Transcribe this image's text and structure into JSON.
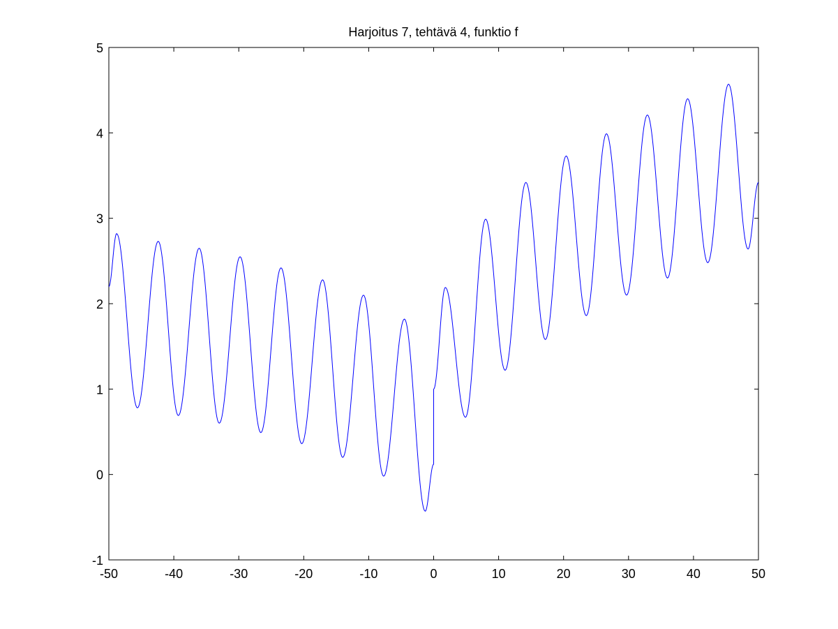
{
  "chart_data": {
    "type": "line",
    "title": "Harjoitus 7, tehtävä 4, funktio f",
    "xlabel": "",
    "ylabel": "",
    "xlim": [
      -50,
      50
    ],
    "ylim": [
      -1,
      5
    ],
    "xticks": [
      -50,
      -40,
      -30,
      -20,
      -10,
      0,
      10,
      20,
      30,
      40,
      50
    ],
    "yticks": [
      -1,
      0,
      1,
      2,
      3,
      4,
      5
    ],
    "xtick_labels": [
      "-50",
      "-40",
      "-30",
      "-20",
      "-10",
      "0",
      "10",
      "20",
      "30",
      "40",
      "50"
    ],
    "ytick_labels": [
      "-1",
      "0",
      "1",
      "2",
      "3",
      "4",
      "5"
    ],
    "grid": false,
    "series": [
      {
        "color": "#0000ff",
        "x": [
          -50,
          -48.8,
          -45.6,
          -42.4,
          -39.3,
          -36.1,
          -33.0,
          -29.8,
          -26.6,
          -23.5,
          -20.3,
          -17.1,
          -14.0,
          -10.8,
          -7.7,
          -4.5,
          -1.3,
          0,
          0,
          1.8,
          4.9,
          8.0,
          11.0,
          14.2,
          17.2,
          20.4,
          23.5,
          26.6,
          29.7,
          32.9,
          36.0,
          39.1,
          42.2,
          45.4,
          48.4,
          50
        ],
        "y": [
          2.2,
          2.82,
          0.78,
          2.73,
          0.69,
          2.65,
          0.6,
          2.55,
          0.49,
          2.42,
          0.36,
          2.28,
          0.2,
          2.1,
          -0.02,
          1.82,
          -0.43,
          0.12,
          1.0,
          2.19,
          0.67,
          2.99,
          1.22,
          3.42,
          1.58,
          3.73,
          1.86,
          3.99,
          2.1,
          4.21,
          2.3,
          4.4,
          2.48,
          4.57,
          2.64,
          3.42
        ]
      }
    ]
  }
}
